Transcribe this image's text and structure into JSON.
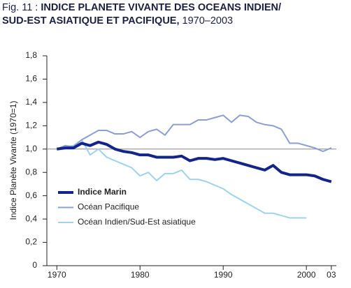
{
  "chart_data": {
    "type": "line",
    "fig_label": "Fig. 11 :",
    "title": [
      "INDICE PLANETE VIVANTE DES OCEANS INDIEN/",
      "SUD-EST ASIATIQUE ET PACIFIQUE,"
    ],
    "subtitle": "1970–2003",
    "y_label": "Indice Planète Vivante (1970=1)",
    "x": [
      1970,
      1971,
      1972,
      1973,
      1974,
      1975,
      1976,
      1977,
      1978,
      1979,
      1980,
      1981,
      1982,
      1983,
      1984,
      1985,
      1986,
      1987,
      1988,
      1989,
      1990,
      1991,
      1992,
      1993,
      1994,
      1995,
      1996,
      1997,
      1998,
      1999,
      2000,
      2001,
      2002,
      2003
    ],
    "series": [
      {
        "name": "Indice Marin",
        "color": "#13248a",
        "width": 4,
        "values": [
          1.0,
          1.01,
          1.01,
          1.05,
          1.03,
          1.06,
          1.04,
          1.0,
          0.98,
          0.97,
          0.95,
          0.95,
          0.93,
          0.93,
          0.93,
          0.94,
          0.9,
          0.92,
          0.92,
          0.91,
          0.92,
          0.9,
          0.88,
          0.86,
          0.84,
          0.82,
          0.86,
          0.8,
          0.78,
          0.78,
          0.78,
          0.77,
          0.74,
          0.72
        ]
      },
      {
        "name": "Océan Pacifique",
        "color": "#8b9fd2",
        "width": 2,
        "values": [
          1.0,
          1.03,
          1.02,
          1.08,
          1.12,
          1.16,
          1.16,
          1.13,
          1.13,
          1.15,
          1.1,
          1.15,
          1.17,
          1.12,
          1.21,
          1.21,
          1.21,
          1.25,
          1.25,
          1.27,
          1.29,
          1.23,
          1.29,
          1.28,
          1.23,
          1.21,
          1.2,
          1.17,
          1.05,
          1.05,
          1.03,
          1.01,
          0.98,
          1.01
        ]
      },
      {
        "name": "Océan Indien/Sud-Est asiatique",
        "color": "#9fd2ec",
        "width": 2,
        "values": [
          1.0,
          1.02,
          1.03,
          1.08,
          0.95,
          1.0,
          0.93,
          0.9,
          0.87,
          0.84,
          0.77,
          0.8,
          0.73,
          0.79,
          0.79,
          0.82,
          0.74,
          0.74,
          0.72,
          0.69,
          0.66,
          0.61,
          0.57,
          0.53,
          0.49,
          0.45,
          0.45,
          0.43,
          0.41,
          0.41,
          0.41,
          null,
          null,
          null
        ]
      }
    ],
    "xlim": [
      1968.8,
      2003.6
    ],
    "xticks": [
      1970,
      1980,
      1990,
      2000,
      {
        "value": 2003,
        "label": "03"
      }
    ],
    "ylim": [
      0,
      1.8
    ],
    "yticks": [
      0,
      {
        "value": 0.2,
        "label": "0,2"
      },
      {
        "value": 0.4,
        "label": "0,4"
      },
      {
        "value": 0.6,
        "label": "0,6"
      },
      {
        "value": 0.8,
        "label": "0,8"
      },
      {
        "value": 1.0,
        "label": "1,0"
      },
      {
        "value": 1.2,
        "label": "1,2"
      },
      {
        "value": 1.4,
        "label": "1,4"
      },
      {
        "value": 1.6,
        "label": "1,6"
      },
      {
        "value": 1.8,
        "label": "1,8"
      }
    ],
    "reference_line": 1.0,
    "legend": "lower left"
  }
}
